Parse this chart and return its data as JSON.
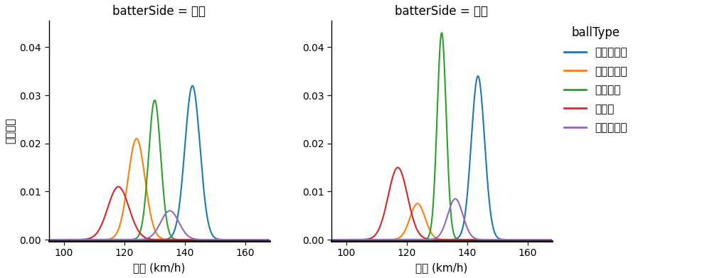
{
  "title_left": "batterSide = 左打",
  "title_right": "batterSide = 右打",
  "xlabel": "球速 (km/h)",
  "ylabel": "確率密度",
  "legend_title": "ballType",
  "xlim": [
    95,
    168
  ],
  "ylim": [
    -0.0003,
    0.0455
  ],
  "yticks": [
    0.0,
    0.01,
    0.02,
    0.03,
    0.04
  ],
  "xticks": [
    100,
    120,
    140,
    160
  ],
  "ball_types": [
    "ストレート",
    "スライダー",
    "フォーク",
    "カーブ",
    "ツーシーム"
  ],
  "colors": [
    "#1f77b4",
    "#ff7f0e",
    "#2ca02c",
    "#d62728",
    "#9467bd"
  ],
  "left": {
    "ストレート": {
      "mean": 142.5,
      "std": 2.5,
      "peak": 0.032
    },
    "スライダー": {
      "mean": 124.0,
      "std": 2.8,
      "peak": 0.021
    },
    "フォーク": {
      "mean": 130.0,
      "std": 2.0,
      "peak": 0.029
    },
    "カーブ": {
      "mean": 118.0,
      "std": 3.5,
      "peak": 0.011
    },
    "ツーシーム": {
      "mean": 135.0,
      "std": 3.0,
      "peak": 0.006
    }
  },
  "right": {
    "ストレート": {
      "mean": 143.5,
      "std": 2.2,
      "peak": 0.034
    },
    "スライダー": {
      "mean": 123.5,
      "std": 2.5,
      "peak": 0.0075
    },
    "フォーク": {
      "mean": 131.5,
      "std": 1.5,
      "peak": 0.043
    },
    "カーブ": {
      "mean": 117.0,
      "std": 3.2,
      "peak": 0.015
    },
    "ツーシーム": {
      "mean": 136.0,
      "std": 2.5,
      "peak": 0.0085
    }
  },
  "background_color": "#ffffff",
  "figsize": [
    9.95,
    3.91
  ],
  "dpi": 100
}
